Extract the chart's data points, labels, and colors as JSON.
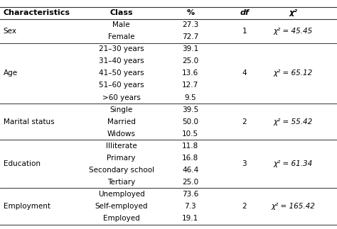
{
  "headers": [
    "Characteristics",
    "Class",
    "%",
    "df",
    "χ²"
  ],
  "rows": [
    {
      "char": "Sex",
      "classes": [
        "Male",
        "Female"
      ],
      "pcts": [
        "27.3",
        "72.7"
      ],
      "df": "1",
      "chi": "χ² = 45.45",
      "n_rows": 2
    },
    {
      "char": "Age",
      "classes": [
        "21–30 years",
        "31–40 years",
        "41–50 years",
        "51–60 years",
        ">60 years"
      ],
      "pcts": [
        "39.1",
        "25.0",
        "13.6",
        "12.7",
        "9.5"
      ],
      "df": "4",
      "chi": "χ² = 65.12",
      "n_rows": 5
    },
    {
      "char": "Marital status",
      "classes": [
        "Single",
        "Married",
        "Widows"
      ],
      "pcts": [
        "39.5",
        "50.0",
        "10.5"
      ],
      "df": "2",
      "chi": "χ² = 55.42",
      "n_rows": 3
    },
    {
      "char": "Education",
      "classes": [
        "Illiterate",
        "Primary",
        "Secondary school",
        "Tertiary"
      ],
      "pcts": [
        "11.8",
        "16.8",
        "46.4",
        "25.0"
      ],
      "df": "3",
      "chi": "χ² = 61.34",
      "n_rows": 4
    },
    {
      "char": "Employment",
      "classes": [
        "Unemployed",
        "Self-employed",
        "Employed"
      ],
      "pcts": [
        "73.6",
        "7.3",
        "19.1"
      ],
      "df": "2",
      "chi": "χ² = 165.42",
      "n_rows": 3
    }
  ],
  "bg_color": "#ffffff",
  "font_size": 7.5,
  "header_font_size": 8.0,
  "col_x": {
    "char": 0.01,
    "class": 0.36,
    "pct": 0.565,
    "df": 0.725,
    "chi": 0.87
  }
}
